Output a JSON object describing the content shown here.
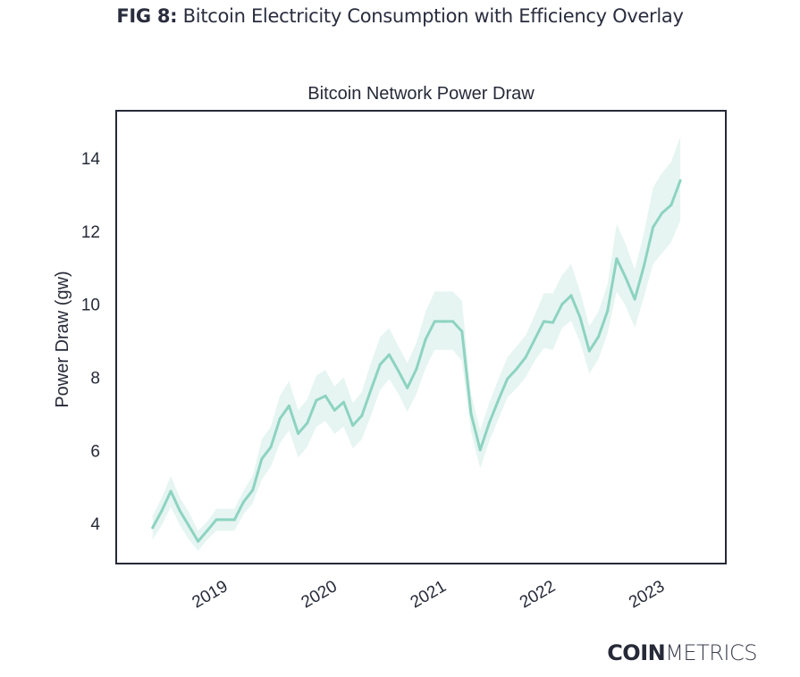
{
  "figure": {
    "label": "FIG 8:",
    "title": "Bitcoin Electricity Consumption with Efficiency Overlay"
  },
  "brand": {
    "bold": "COIN",
    "light": "METRICS"
  },
  "colors": {
    "line": "#8dd3c0",
    "band": "#e6f5f1",
    "frame": "#262a38",
    "text": "#262a38"
  },
  "chart_data": {
    "type": "line",
    "title": "Bitcoin Network Power Draw",
    "xlabel": "",
    "ylabel": "Power Draw (gw)",
    "ylim": [
      2.9,
      15.3
    ],
    "xlim": [
      "2018-01",
      "2023-08"
    ],
    "grid": false,
    "legend": "none",
    "yticks": [
      4,
      6,
      8,
      10,
      12,
      14
    ],
    "xticks": [
      {
        "label": "2019",
        "date": "2019-01"
      },
      {
        "label": "2020",
        "date": "2020-01"
      },
      {
        "label": "2021",
        "date": "2021-01"
      },
      {
        "label": "2022",
        "date": "2022-01"
      },
      {
        "label": "2023",
        "date": "2023-01"
      }
    ],
    "x_start": "2018-05",
    "x_step": "monthly",
    "series": [
      {
        "name": "Power Draw",
        "values": [
          3.88,
          4.34,
          4.88,
          4.34,
          3.93,
          3.51,
          3.8,
          4.1,
          4.1,
          4.1,
          4.59,
          4.91,
          5.77,
          6.09,
          6.87,
          7.22,
          6.46,
          6.75,
          7.37,
          7.49,
          7.1,
          7.32,
          6.68,
          6.95,
          7.66,
          8.35,
          8.62,
          8.18,
          7.71,
          8.23,
          9.04,
          9.53,
          9.53,
          9.53,
          9.26,
          7.0,
          6.01,
          6.75,
          7.37,
          7.96,
          8.23,
          8.55,
          9.04,
          9.53,
          9.5,
          10.0,
          10.24,
          9.63,
          8.72,
          9.11,
          9.82,
          11.25,
          10.73,
          10.14,
          11.05,
          12.11,
          12.5,
          12.72,
          13.39
        ],
        "lower": [
          3.55,
          3.95,
          4.45,
          3.95,
          3.55,
          3.25,
          3.55,
          3.8,
          3.8,
          3.8,
          4.25,
          4.55,
          5.2,
          5.55,
          6.2,
          6.55,
          5.8,
          6.1,
          6.65,
          6.8,
          6.45,
          6.65,
          6.05,
          6.3,
          6.95,
          7.65,
          7.95,
          7.55,
          7.05,
          7.55,
          8.25,
          8.75,
          8.75,
          8.75,
          8.45,
          6.5,
          5.5,
          6.25,
          6.85,
          7.45,
          7.7,
          8.0,
          8.45,
          8.8,
          8.75,
          9.35,
          9.55,
          8.95,
          8.1,
          8.5,
          9.2,
          10.35,
          9.95,
          9.35,
          10.2,
          11.1,
          11.4,
          11.7,
          12.3
        ],
        "upper": [
          4.2,
          4.7,
          5.3,
          4.7,
          4.3,
          3.8,
          4.05,
          4.4,
          4.4,
          4.4,
          4.9,
          5.3,
          6.3,
          6.65,
          7.5,
          7.9,
          7.1,
          7.4,
          8.05,
          8.2,
          7.75,
          8.0,
          7.3,
          7.6,
          8.4,
          9.1,
          9.35,
          8.85,
          8.4,
          8.95,
          9.8,
          10.35,
          10.35,
          10.35,
          10.1,
          7.55,
          6.55,
          7.3,
          7.95,
          8.55,
          8.85,
          9.15,
          9.7,
          10.3,
          10.3,
          10.8,
          11.1,
          10.35,
          9.4,
          9.8,
          10.55,
          12.2,
          11.65,
          10.95,
          11.95,
          13.2,
          13.6,
          13.9,
          14.6
        ]
      }
    ]
  }
}
